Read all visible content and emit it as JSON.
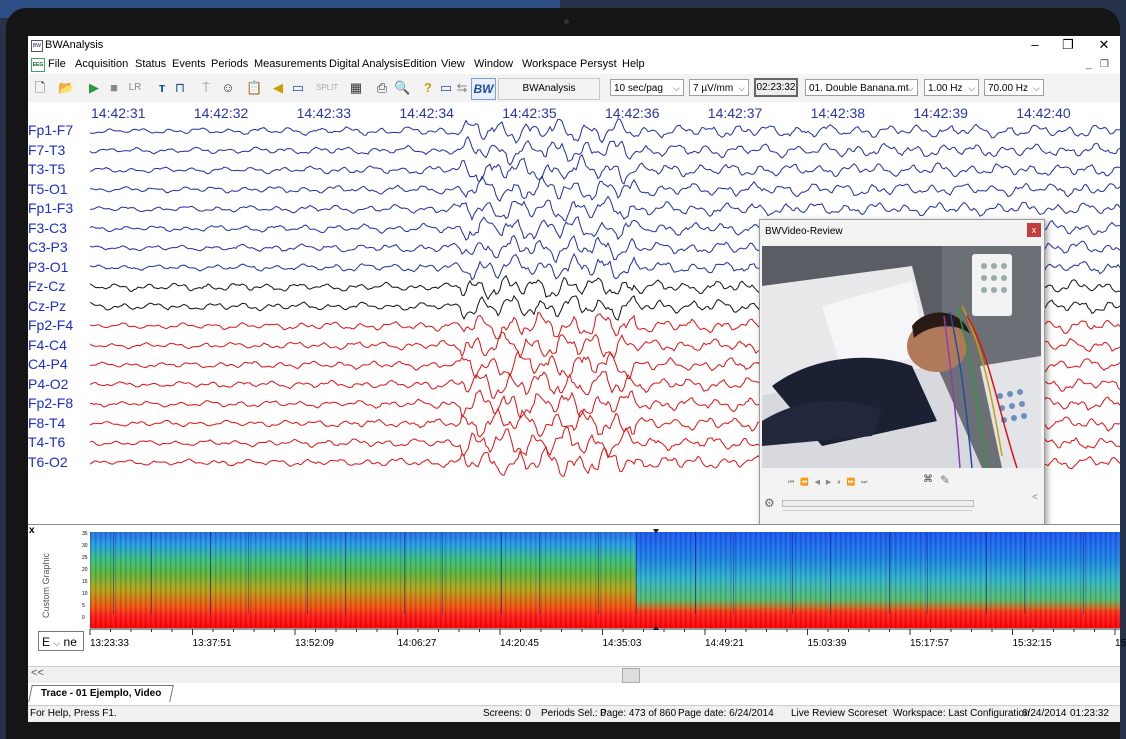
{
  "window": {
    "title": "BWAnalysis"
  },
  "menu": [
    "File",
    "Acquisition",
    "Status",
    "Events",
    "Periods",
    "Measurements",
    "Digital Analysis",
    "Edition",
    "View",
    "Window",
    "Workspace",
    "Persyst",
    "Help"
  ],
  "toolbar": {
    "lr_label": "LR",
    "bwanalysis_button": "BWAnalysis",
    "time_scale": "10 sec/pag",
    "sensitivity": "7 µV/mm",
    "time_box": "02:23:32",
    "montage": "01. Double Banana.mt",
    "low_filter": "1.00 Hz",
    "high_filter": "70.00 Hz"
  },
  "eeg": {
    "timestamps": [
      "14:42:31",
      "14:42:32",
      "14:42:33",
      "14:42:34",
      "14:42:35",
      "14:42:36",
      "14:42:37",
      "14:42:38",
      "14:42:39",
      "14:42:40"
    ],
    "channels": [
      {
        "name": "Fp1-F7",
        "color": "#1e2fa0"
      },
      {
        "name": "F7-T3",
        "color": "#1e2fa0"
      },
      {
        "name": "T3-T5",
        "color": "#1e2fa0"
      },
      {
        "name": "T5-O1",
        "color": "#1e2fa0"
      },
      {
        "name": "Fp1-F3",
        "color": "#1e2fa0"
      },
      {
        "name": "F3-C3",
        "color": "#1e2fa0"
      },
      {
        "name": "C3-P3",
        "color": "#1e2fa0"
      },
      {
        "name": "P3-O1",
        "color": "#1e2fa0"
      },
      {
        "name": "Fz-Cz",
        "color": "#111111"
      },
      {
        "name": "Cz-Pz",
        "color": "#111111"
      },
      {
        "name": "Fp2-F4",
        "color": "#e01010"
      },
      {
        "name": "F4-C4",
        "color": "#e01010"
      },
      {
        "name": "C4-P4",
        "color": "#e01010"
      },
      {
        "name": "P4-O2",
        "color": "#e01010"
      },
      {
        "name": "Fp2-F8",
        "color": "#e01010"
      },
      {
        "name": "F8-T4",
        "color": "#e01010"
      },
      {
        "name": "T4-T6",
        "color": "#e01010"
      },
      {
        "name": "T6-O2",
        "color": "#e01010"
      }
    ]
  },
  "video": {
    "title": "BWVideo-Review",
    "close": "x"
  },
  "spectrogram": {
    "y_ticks": [
      "35",
      "30",
      "25",
      "20",
      "15",
      "10",
      "5",
      "0"
    ],
    "side_label": "Custom Graphic",
    "x_marker": "x",
    "dropdown_value": "E",
    "dropdown_suffix": "ne",
    "time_labels": [
      "13:23:33",
      "13:37:51",
      "13:52:09",
      "14:06:27",
      "14:20:45",
      "14:35:03",
      "14:49:21",
      "15:03:39",
      "15:17:57",
      "15:32:15",
      "15"
    ]
  },
  "scroll": {
    "left_arrow": "<<"
  },
  "tabs": {
    "active": "Trace - 01 Ejemplo, Video"
  },
  "status": {
    "help": "For Help, Press F1.",
    "screens": "Screens: 0",
    "periods": "Periods Sel.: 0",
    "page": "Page: 473 of 860",
    "page_date": "Page date: 6/24/2014",
    "scoreset": "Live Review Scoreset",
    "workspace": "Workspace: Last Configuration",
    "date": "6/24/2014",
    "time": "01:23:32"
  }
}
